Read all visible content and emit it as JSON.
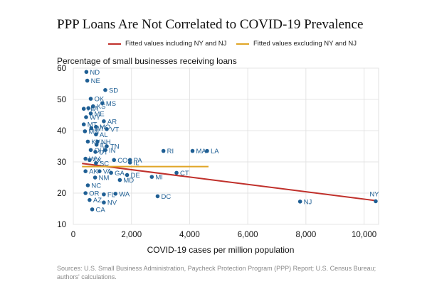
{
  "chart_data": {
    "type": "scatter",
    "title": "PPP Loans Are Not Correlated to COVID-19 Prevalence",
    "ylabel": "Percentage of small businesses receiving loans",
    "xlabel": "COVID-19 cases per million population",
    "xlim": [
      0,
      10500
    ],
    "ylim": [
      10,
      60
    ],
    "x_ticks": [
      0,
      2000,
      4000,
      6000,
      8000,
      10000
    ],
    "x_tick_labels": [
      "0",
      "2,000",
      "4,000",
      "6,000",
      "8,000",
      "10,000"
    ],
    "y_ticks": [
      10,
      20,
      30,
      40,
      50,
      60
    ],
    "y_tick_labels": [
      "10",
      "20",
      "30",
      "40",
      "50",
      "60"
    ],
    "grid": true,
    "point_color": "#1f5f94",
    "legend": [
      {
        "label": "Fitted values including NY and NJ",
        "color": "#c0302b"
      },
      {
        "label": "Fitted values excluding NY and NJ",
        "color": "#e0a526"
      }
    ],
    "fitted_lines": [
      {
        "name": "Fitted values including NY and NJ",
        "color": "#c0302b",
        "x": [
          300,
          10400
        ],
        "y": [
          29.5,
          17.6
        ]
      },
      {
        "name": "Fitted values excluding NY and NJ",
        "color": "#e0a526",
        "x": [
          300,
          4650
        ],
        "y": [
          28.5,
          28.5
        ]
      }
    ],
    "points": [
      {
        "label": "ND",
        "x": 450,
        "y": 58.8
      },
      {
        "label": "NE",
        "x": 480,
        "y": 56.0
      },
      {
        "label": "SD",
        "x": 1100,
        "y": 53.0
      },
      {
        "label": "OK",
        "x": 600,
        "y": 50.2
      },
      {
        "label": "MS",
        "x": 1000,
        "y": 48.8
      },
      {
        "label": "HI",
        "x": 360,
        "y": 47.0
      },
      {
        "label": "IA",
        "x": 520,
        "y": 47.2
      },
      {
        "label": "KS",
        "x": 680,
        "y": 47.8
      },
      {
        "label": "ME",
        "x": 600,
        "y": 45.5
      },
      {
        "label": "WY",
        "x": 440,
        "y": 44.3
      },
      {
        "label": "AR",
        "x": 1050,
        "y": 43.0
      },
      {
        "label": "MT",
        "x": 360,
        "y": 42.0
      },
      {
        "label": "MO",
        "x": 780,
        "y": 41.2
      },
      {
        "label": "WI",
        "x": 620,
        "y": 40.8
      },
      {
        "label": "VT",
        "x": 1150,
        "y": 40.5
      },
      {
        "label": "MN",
        "x": 400,
        "y": 39.8
      },
      {
        "label": "AL",
        "x": 780,
        "y": 38.8
      },
      {
        "label": "NH",
        "x": 830,
        "y": 36.5
      },
      {
        "label": "KY",
        "x": 500,
        "y": 36.5
      },
      {
        "label": "ID",
        "x": 800,
        "y": 35.5
      },
      {
        "label": "TN",
        "x": 1150,
        "y": 35.0
      },
      {
        "label": "OH",
        "x": 600,
        "y": 33.8
      },
      {
        "label": "UT",
        "x": 760,
        "y": 33.2
      },
      {
        "label": "IN",
        "x": 1100,
        "y": 33.8
      },
      {
        "label": "RI",
        "x": 3100,
        "y": 33.5
      },
      {
        "label": "MA",
        "x": 4100,
        "y": 33.5
      },
      {
        "label": "LA",
        "x": 4600,
        "y": 33.5
      },
      {
        "label": "WV",
        "x": 420,
        "y": 31.0
      },
      {
        "label": "TX",
        "x": 560,
        "y": 30.6
      },
      {
        "label": "SC",
        "x": 780,
        "y": 29.6
      },
      {
        "label": "CO",
        "x": 1400,
        "y": 30.6
      },
      {
        "label": "PA",
        "x": 1950,
        "y": 30.6
      },
      {
        "label": "IL",
        "x": 1950,
        "y": 29.8
      },
      {
        "label": "AK",
        "x": 420,
        "y": 27.0
      },
      {
        "label": "VA",
        "x": 900,
        "y": 27.0
      },
      {
        "label": "GA",
        "x": 1300,
        "y": 26.5
      },
      {
        "label": "DE",
        "x": 1850,
        "y": 25.8
      },
      {
        "label": "MI",
        "x": 2700,
        "y": 25.2
      },
      {
        "label": "CT",
        "x": 3550,
        "y": 26.5
      },
      {
        "label": "NM",
        "x": 750,
        "y": 25.0
      },
      {
        "label": "MD",
        "x": 1600,
        "y": 24.2
      },
      {
        "label": "NC",
        "x": 500,
        "y": 22.5
      },
      {
        "label": "OR",
        "x": 420,
        "y": 20.0
      },
      {
        "label": "FL",
        "x": 1050,
        "y": 19.6
      },
      {
        "label": "WA",
        "x": 1450,
        "y": 19.8
      },
      {
        "label": "DC",
        "x": 2900,
        "y": 19.0
      },
      {
        "label": "AZ",
        "x": 560,
        "y": 17.8
      },
      {
        "label": "NV",
        "x": 1050,
        "y": 17.0
      },
      {
        "label": "CA",
        "x": 650,
        "y": 14.8
      },
      {
        "label": "NJ",
        "x": 7800,
        "y": 17.3
      },
      {
        "label": "NY",
        "x": 10400,
        "y": 17.4
      }
    ]
  },
  "source_note": "Sources: U.S. Small Business Administration, Paycheck Protection Program (PPP) Report; U.S. Census Bureau; authors' calculations."
}
